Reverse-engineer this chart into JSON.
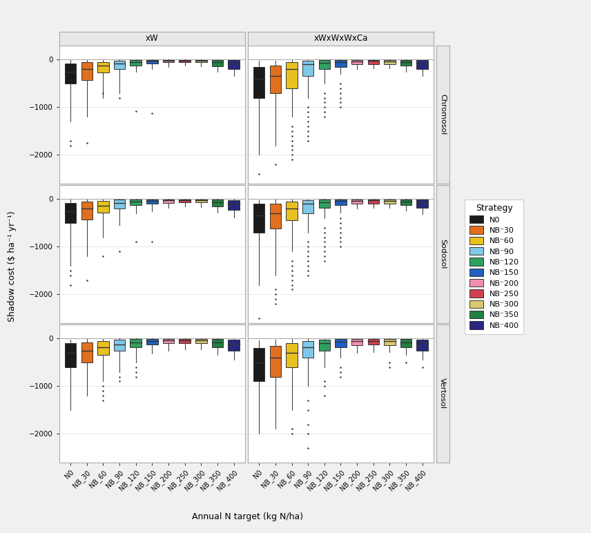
{
  "strategies": [
    "N0",
    "NB_30",
    "NB_60",
    "NB_90",
    "NB_120",
    "NB_150",
    "NB_200",
    "NB_250",
    "NB_300",
    "NB_350",
    "NB_400"
  ],
  "colors": [
    "#1a1a1a",
    "#e07020",
    "#e8c020",
    "#80c8e8",
    "#30a060",
    "#2060c0",
    "#f090b0",
    "#d04050",
    "#d8c870",
    "#208040",
    "#282880"
  ],
  "soils": [
    "Chromosol",
    "Sodosol",
    "Vertosol"
  ],
  "rotations": [
    "xW",
    "xWxWxWxCa"
  ],
  "ylabel": "Shadow cost ($ ha⁻¹ yr⁻¹)",
  "xlabel": "Annual N target (kg N/ha)",
  "legend_title": "Strategy",
  "legend_labels": [
    "N0",
    "NB⁻30",
    "NB⁻60",
    "NB⁻90",
    "NB⁻120",
    "NB⁻150",
    "NB⁻200",
    "NB⁻250",
    "NB⁻300",
    "NB⁻350",
    "NB⁻400"
  ],
  "ylim": [
    -2600,
    300
  ],
  "yticks": [
    0,
    -1000,
    -2000
  ],
  "xW_Chromosol": {
    "N0": {
      "q1": -500,
      "med": -250,
      "q3": -80,
      "whislo": -1300,
      "whishi": -5,
      "fliers": [
        -1800,
        -1700
      ]
    },
    "NB_30": {
      "q1": -430,
      "med": -200,
      "q3": -60,
      "whislo": -1200,
      "whishi": -10,
      "fliers": [
        -1750
      ]
    },
    "NB_60": {
      "q1": -270,
      "med": -130,
      "q3": -50,
      "whislo": -800,
      "whishi": -5,
      "fliers": [
        -700
      ]
    },
    "NB_90": {
      "q1": -200,
      "med": -80,
      "q3": -20,
      "whislo": -700,
      "whishi": -2,
      "fliers": [
        -800
      ]
    },
    "NB_120": {
      "q1": -120,
      "med": -50,
      "q3": -10,
      "whislo": -250,
      "whishi": -2,
      "fliers": [
        -1080
      ]
    },
    "NB_150": {
      "q1": -80,
      "med": -30,
      "q3": -5,
      "whislo": -200,
      "whishi": -1,
      "fliers": [
        -1120
      ]
    },
    "NB_200": {
      "q1": -60,
      "med": -20,
      "q3": -3,
      "whislo": -150,
      "whishi": -1,
      "fliers": []
    },
    "NB_250": {
      "q1": -55,
      "med": -18,
      "q3": -3,
      "whislo": -130,
      "whishi": -1,
      "fliers": []
    },
    "NB_300": {
      "q1": -60,
      "med": -20,
      "q3": -3,
      "whislo": -140,
      "whishi": -1,
      "fliers": []
    },
    "NB_350": {
      "q1": -140,
      "med": -60,
      "q3": -10,
      "whislo": -250,
      "whishi": -2,
      "fliers": []
    },
    "NB_400": {
      "q1": -200,
      "med": -80,
      "q3": -15,
      "whislo": -350,
      "whishi": -2,
      "fliers": []
    }
  },
  "xW_Sodosol": {
    "N0": {
      "q1": -500,
      "med": -250,
      "q3": -80,
      "whislo": -1400,
      "whishi": -10,
      "fliers": [
        -1600,
        -1800,
        -1500
      ]
    },
    "NB_30": {
      "q1": -430,
      "med": -200,
      "q3": -60,
      "whislo": -1200,
      "whishi": -10,
      "fliers": [
        -1700
      ]
    },
    "NB_60": {
      "q1": -280,
      "med": -140,
      "q3": -40,
      "whislo": -800,
      "whishi": -5,
      "fliers": [
        -1200
      ]
    },
    "NB_90": {
      "q1": -200,
      "med": -80,
      "q3": -15,
      "whislo": -550,
      "whishi": -2,
      "fliers": [
        -1100
      ]
    },
    "NB_120": {
      "q1": -130,
      "med": -55,
      "q3": -10,
      "whislo": -300,
      "whishi": -2,
      "fliers": [
        -900
      ]
    },
    "NB_150": {
      "q1": -100,
      "med": -40,
      "q3": -8,
      "whislo": -250,
      "whishi": -1,
      "fliers": [
        -900
      ]
    },
    "NB_200": {
      "q1": -80,
      "med": -30,
      "q3": -5,
      "whislo": -180,
      "whishi": -1,
      "fliers": []
    },
    "NB_250": {
      "q1": -70,
      "med": -25,
      "q3": -5,
      "whislo": -160,
      "whishi": -1,
      "fliers": []
    },
    "NB_300": {
      "q1": -75,
      "med": -28,
      "q3": -5,
      "whislo": -170,
      "whishi": -1,
      "fliers": []
    },
    "NB_350": {
      "q1": -160,
      "med": -70,
      "q3": -12,
      "whislo": -280,
      "whishi": -2,
      "fliers": []
    },
    "NB_400": {
      "q1": -220,
      "med": -90,
      "q3": -20,
      "whislo": -380,
      "whishi": -2,
      "fliers": []
    }
  },
  "xW_Vertosol": {
    "N0": {
      "q1": -600,
      "med": -300,
      "q3": -100,
      "whislo": -1500,
      "whishi": -20,
      "fliers": []
    },
    "NB_30": {
      "q1": -500,
      "med": -250,
      "q3": -80,
      "whislo": -1200,
      "whishi": -10,
      "fliers": []
    },
    "NB_60": {
      "q1": -350,
      "med": -180,
      "q3": -60,
      "whislo": -900,
      "whishi": -5,
      "fliers": [
        -1000,
        -1100,
        -1200,
        -1300
      ]
    },
    "NB_90": {
      "q1": -250,
      "med": -120,
      "q3": -30,
      "whislo": -700,
      "whishi": -2,
      "fliers": [
        -800,
        -900
      ]
    },
    "NB_120": {
      "q1": -180,
      "med": -80,
      "q3": -15,
      "whislo": -500,
      "whishi": -2,
      "fliers": [
        -600,
        -700,
        -800
      ]
    },
    "NB_150": {
      "q1": -130,
      "med": -50,
      "q3": -10,
      "whislo": -320,
      "whishi": -1,
      "fliers": []
    },
    "NB_200": {
      "q1": -100,
      "med": -40,
      "q3": -8,
      "whislo": -250,
      "whishi": -1,
      "fliers": []
    },
    "NB_250": {
      "q1": -90,
      "med": -35,
      "q3": -7,
      "whislo": -220,
      "whishi": -1,
      "fliers": []
    },
    "NB_300": {
      "q1": -100,
      "med": -38,
      "q3": -8,
      "whislo": -230,
      "whishi": -1,
      "fliers": []
    },
    "NB_350": {
      "q1": -180,
      "med": -80,
      "q3": -15,
      "whislo": -350,
      "whishi": -2,
      "fliers": []
    },
    "NB_400": {
      "q1": -250,
      "med": -110,
      "q3": -25,
      "whislo": -450,
      "whishi": -3,
      "fliers": []
    }
  },
  "xWxWxWxCa_Chromosol": {
    "N0": {
      "q1": -800,
      "med": -400,
      "q3": -150,
      "whislo": -2000,
      "whishi": -30,
      "fliers": [
        -2400
      ]
    },
    "NB_30": {
      "q1": -700,
      "med": -350,
      "q3": -120,
      "whislo": -1800,
      "whishi": -20,
      "fliers": [
        -2200
      ]
    },
    "NB_60": {
      "q1": -600,
      "med": -200,
      "q3": -60,
      "whislo": -1200,
      "whishi": -10,
      "fliers": [
        -1400,
        -1500,
        -1600,
        -1700,
        -1800,
        -1900,
        -2000,
        -2100
      ]
    },
    "NB_90": {
      "q1": -350,
      "med": -100,
      "q3": -20,
      "whislo": -800,
      "whishi": -5,
      "fliers": [
        -1000,
        -1100,
        -1200,
        -1300,
        -1400,
        -1500,
        -1600,
        -1700
      ]
    },
    "NB_120": {
      "q1": -200,
      "med": -70,
      "q3": -15,
      "whislo": -500,
      "whishi": -3,
      "fliers": [
        -700,
        -800,
        -900,
        -1000,
        -1100,
        -1200
      ]
    },
    "NB_150": {
      "q1": -150,
      "med": -50,
      "q3": -10,
      "whislo": -300,
      "whishi": -2,
      "fliers": [
        -500,
        -600,
        -700,
        -800,
        -900,
        -1000
      ]
    },
    "NB_200": {
      "q1": -100,
      "med": -35,
      "q3": -8,
      "whislo": -200,
      "whishi": -1,
      "fliers": []
    },
    "NB_250": {
      "q1": -90,
      "med": -30,
      "q3": -7,
      "whislo": -180,
      "whishi": -1,
      "fliers": []
    },
    "NB_300": {
      "q1": -100,
      "med": -35,
      "q3": -8,
      "whislo": -190,
      "whishi": -1,
      "fliers": []
    },
    "NB_350": {
      "q1": -130,
      "med": -50,
      "q3": -10,
      "whislo": -250,
      "whishi": -2,
      "fliers": []
    },
    "NB_400": {
      "q1": -200,
      "med": -80,
      "q3": -15,
      "whislo": -350,
      "whishi": -3,
      "fliers": []
    }
  },
  "xWxWxWxCa_Sodosol": {
    "N0": {
      "q1": -700,
      "med": -350,
      "q3": -100,
      "whislo": -1800,
      "whishi": -20,
      "fliers": [
        -2500
      ]
    },
    "NB_30": {
      "q1": -620,
      "med": -300,
      "q3": -100,
      "whislo": -1600,
      "whishi": -15,
      "fliers": [
        -1900,
        -2000,
        -2100,
        -2200
      ]
    },
    "NB_60": {
      "q1": -450,
      "med": -200,
      "q3": -60,
      "whislo": -1100,
      "whishi": -8,
      "fliers": [
        -1300,
        -1400,
        -1500,
        -1600,
        -1700,
        -1800,
        -1900
      ]
    },
    "NB_90": {
      "q1": -300,
      "med": -100,
      "q3": -20,
      "whislo": -700,
      "whishi": -5,
      "fliers": [
        -900,
        -1000,
        -1100,
        -1200,
        -1300,
        -1400,
        -1500,
        -1600
      ]
    },
    "NB_120": {
      "q1": -180,
      "med": -65,
      "q3": -12,
      "whislo": -400,
      "whishi": -2,
      "fliers": [
        -600,
        -700,
        -800,
        -900,
        -1000,
        -1100,
        -1200,
        -1300
      ]
    },
    "NB_150": {
      "q1": -130,
      "med": -45,
      "q3": -8,
      "whislo": -280,
      "whishi": -2,
      "fliers": [
        -400,
        -500,
        -600,
        -700,
        -800,
        -900,
        -1000
      ]
    },
    "NB_200": {
      "q1": -100,
      "med": -35,
      "q3": -7,
      "whislo": -200,
      "whishi": -1,
      "fliers": []
    },
    "NB_250": {
      "q1": -90,
      "med": -30,
      "q3": -5,
      "whislo": -180,
      "whishi": -1,
      "fliers": []
    },
    "NB_300": {
      "q1": -95,
      "med": -33,
      "q3": -6,
      "whislo": -185,
      "whishi": -1,
      "fliers": []
    },
    "NB_350": {
      "q1": -130,
      "med": -50,
      "q3": -10,
      "whislo": -240,
      "whishi": -2,
      "fliers": []
    },
    "NB_400": {
      "q1": -180,
      "med": -75,
      "q3": -15,
      "whislo": -320,
      "whishi": -3,
      "fliers": []
    }
  },
  "xWxWxWxCa_Vertosol": {
    "N0": {
      "q1": -900,
      "med": -500,
      "q3": -200,
      "whislo": -2000,
      "whishi": -40,
      "fliers": []
    },
    "NB_30": {
      "q1": -800,
      "med": -400,
      "q3": -150,
      "whislo": -1900,
      "whishi": -30,
      "fliers": []
    },
    "NB_60": {
      "q1": -600,
      "med": -300,
      "q3": -100,
      "whislo": -1500,
      "whishi": -15,
      "fliers": [
        -1900,
        -2000
      ]
    },
    "NB_90": {
      "q1": -400,
      "med": -180,
      "q3": -50,
      "whislo": -1000,
      "whishi": -8,
      "fliers": [
        -1300,
        -1500,
        -1800,
        -2000,
        -2300
      ]
    },
    "NB_120": {
      "q1": -250,
      "med": -100,
      "q3": -20,
      "whislo": -600,
      "whishi": -3,
      "fliers": [
        -900,
        -1000,
        -1200
      ]
    },
    "NB_150": {
      "q1": -180,
      "med": -70,
      "q3": -15,
      "whislo": -400,
      "whishi": -2,
      "fliers": [
        -600,
        -700,
        -800
      ]
    },
    "NB_200": {
      "q1": -140,
      "med": -55,
      "q3": -12,
      "whislo": -300,
      "whishi": -2,
      "fliers": []
    },
    "NB_250": {
      "q1": -130,
      "med": -50,
      "q3": -10,
      "whislo": -280,
      "whishi": -2,
      "fliers": []
    },
    "NB_300": {
      "q1": -140,
      "med": -55,
      "q3": -12,
      "whislo": -290,
      "whishi": -2,
      "fliers": [
        -500,
        -600
      ]
    },
    "NB_350": {
      "q1": -180,
      "med": -75,
      "q3": -15,
      "whislo": -350,
      "whishi": -3,
      "fliers": [
        -500
      ]
    },
    "NB_400": {
      "q1": -250,
      "med": -100,
      "q3": -22,
      "whislo": -450,
      "whishi": -4,
      "fliers": [
        -600
      ]
    }
  }
}
